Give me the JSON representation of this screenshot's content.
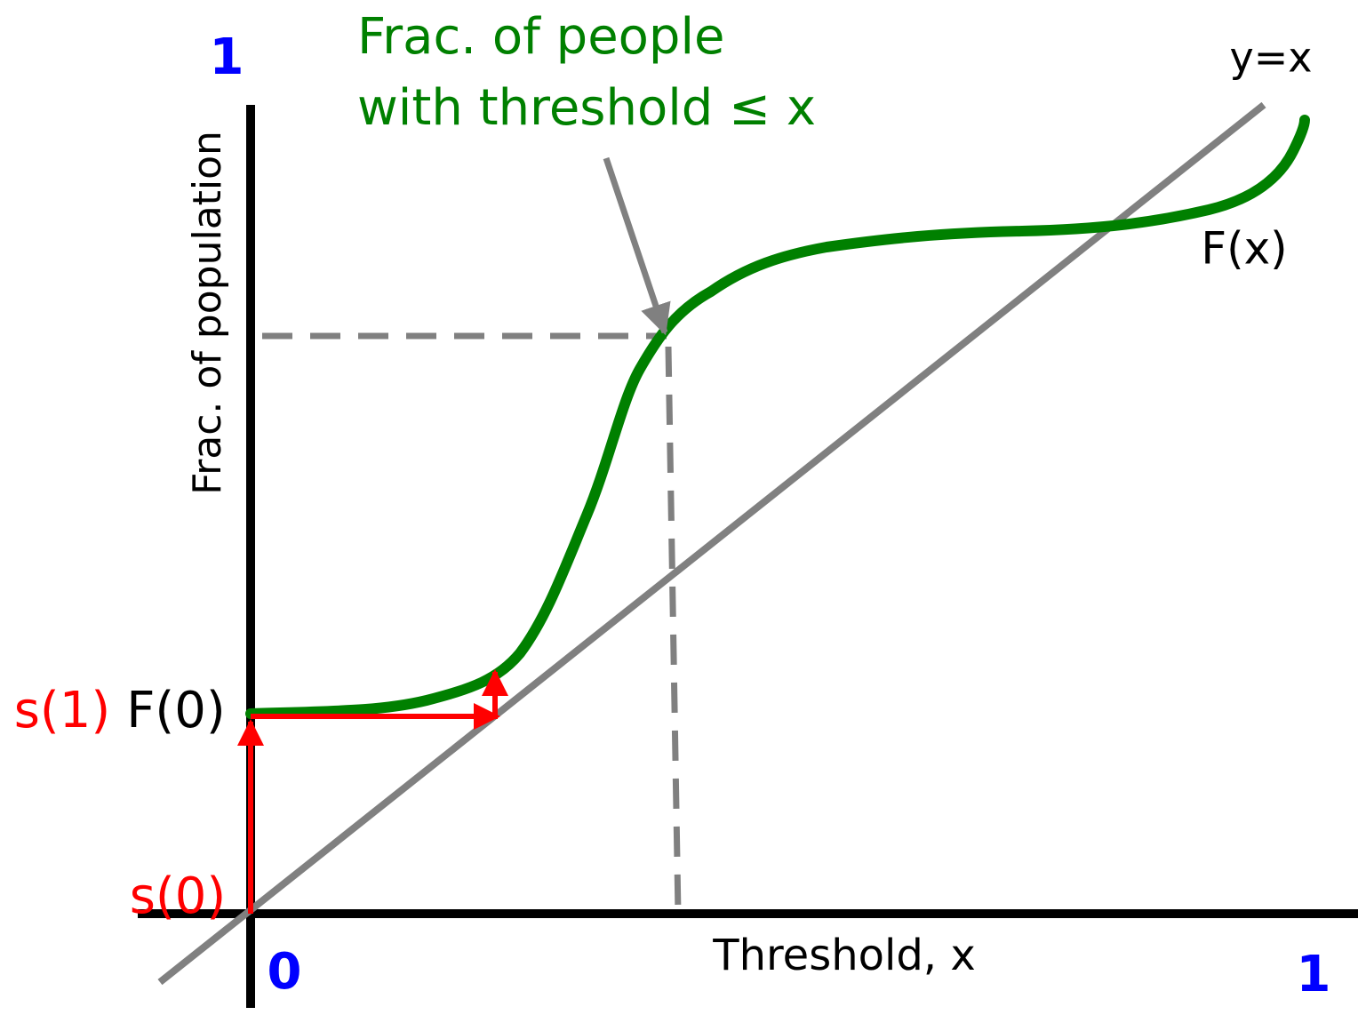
{
  "labels": {
    "y_max": "1",
    "x_min": "0",
    "x_max": "1",
    "y_axis": "Frac. of population",
    "x_axis": "Threshold, x",
    "annotation": [
      "Frac. of people",
      "with threshold ≤ x"
    ],
    "identity_line": "y=x",
    "curve": "F(x)",
    "s1": "s(1)",
    "f0": "F(0)",
    "s0": "s(0)"
  }
}
